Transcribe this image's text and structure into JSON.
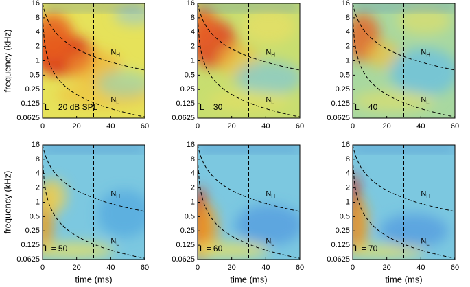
{
  "chart_data": [
    {
      "type": "heatmap",
      "label": "L = 20 dB SPL",
      "ylabel": "frequency (kHz)",
      "xlim": [
        0,
        60
      ],
      "xticks": [
        0,
        20,
        40,
        60
      ],
      "ylim": [
        0.0625,
        16
      ],
      "yticks": [
        0.0625,
        0.125,
        0.25,
        0.5,
        1,
        2,
        4,
        8,
        16
      ],
      "yscale": "log",
      "reference_x": 30,
      "annotations": [
        {
          "base": "N",
          "sub": "H"
        },
        {
          "base": "N",
          "sub": "L"
        }
      ]
    },
    {
      "type": "heatmap",
      "label": "L = 30",
      "xlim": [
        0,
        60
      ],
      "xticks": [
        0,
        20,
        40,
        60
      ],
      "ylim": [
        0.0625,
        16
      ],
      "yticks": [
        0.0625,
        0.125,
        0.25,
        0.5,
        1,
        2,
        4,
        8,
        16
      ],
      "yscale": "log",
      "reference_x": 30,
      "annotations": [
        {
          "base": "N",
          "sub": "H"
        },
        {
          "base": "N",
          "sub": "L"
        }
      ]
    },
    {
      "type": "heatmap",
      "label": "L = 40",
      "xlim": [
        0,
        60
      ],
      "xticks": [
        0,
        20,
        40,
        60
      ],
      "ylim": [
        0.0625,
        16
      ],
      "yticks": [
        0.0625,
        0.125,
        0.25,
        0.5,
        1,
        2,
        4,
        8,
        16
      ],
      "yscale": "log",
      "reference_x": 30,
      "annotations": [
        {
          "base": "N",
          "sub": "H"
        },
        {
          "base": "N",
          "sub": "L"
        }
      ]
    },
    {
      "type": "heatmap",
      "label": "L = 50",
      "ylabel": "frequency (kHz)",
      "xlabel": "time (ms)",
      "xlim": [
        0,
        60
      ],
      "xticks": [
        0,
        20,
        40,
        60
      ],
      "ylim": [
        0.0625,
        16
      ],
      "yticks": [
        0.0625,
        0.125,
        0.25,
        0.5,
        1,
        2,
        4,
        8,
        16
      ],
      "yscale": "log",
      "reference_x": 30,
      "annotations": [
        {
          "base": "N",
          "sub": "H"
        },
        {
          "base": "N",
          "sub": "L"
        }
      ]
    },
    {
      "type": "heatmap",
      "label": "L = 60",
      "xlabel": "time (ms)",
      "xlim": [
        0,
        60
      ],
      "xticks": [
        0,
        20,
        40,
        60
      ],
      "ylim": [
        0.0625,
        16
      ],
      "yticks": [
        0.0625,
        0.125,
        0.25,
        0.5,
        1,
        2,
        4,
        8,
        16
      ],
      "yscale": "log",
      "reference_x": 30,
      "annotations": [
        {
          "base": "N",
          "sub": "H"
        },
        {
          "base": "N",
          "sub": "L"
        }
      ]
    },
    {
      "type": "heatmap",
      "label": "L = 70",
      "xlabel": "time (ms)",
      "xlim": [
        0,
        60
      ],
      "xticks": [
        0,
        20,
        40,
        60
      ],
      "ylim": [
        0.0625,
        16
      ],
      "yticks": [
        0.0625,
        0.125,
        0.25,
        0.5,
        1,
        2,
        4,
        8,
        16
      ],
      "yscale": "log",
      "reference_x": 30,
      "annotations": [
        {
          "base": "N",
          "sub": "H"
        },
        {
          "base": "N",
          "sub": "L"
        }
      ]
    }
  ]
}
